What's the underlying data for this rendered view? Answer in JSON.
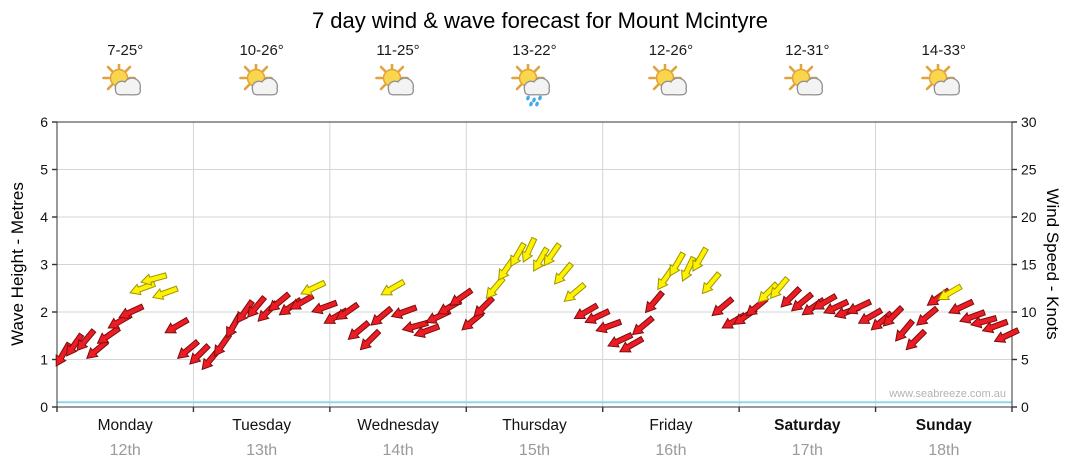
{
  "watermark": "www.seabreeze.com.au",
  "days": [
    {
      "name": "Monday",
      "date": "12th",
      "temp": "7-25°",
      "icon": "sun-cloud",
      "bold": false
    },
    {
      "name": "Tuesday",
      "date": "13th",
      "temp": "10-26°",
      "icon": "sun-cloud",
      "bold": false
    },
    {
      "name": "Wednesday",
      "date": "14th",
      "temp": "11-25°",
      "icon": "sun-cloud",
      "bold": false
    },
    {
      "name": "Thursday",
      "date": "15th",
      "temp": "13-22°",
      "icon": "sun-cloud-rain",
      "bold": false
    },
    {
      "name": "Friday",
      "date": "16th",
      "temp": "12-26°",
      "icon": "sun-cloud",
      "bold": false
    },
    {
      "name": "Saturday",
      "date": "17th",
      "temp": "12-31°",
      "icon": "sun-cloud",
      "bold": true
    },
    {
      "name": "Sunday",
      "date": "18th",
      "temp": "14-33°",
      "icon": "sun-cloud",
      "bold": true
    }
  ],
  "chart_data": {
    "type": "wind-arrows",
    "title": "7 day wind & wave forecast for Mount Mcintyre",
    "left_axis": {
      "label": "Wave Height - Metres",
      "min": 0,
      "max": 6,
      "step": 1
    },
    "right_axis": {
      "label": "Wind Speed - Knots",
      "min": 0,
      "max": 30,
      "step": 5
    },
    "grid": true,
    "colors": {
      "low_wind": "#ed1c24",
      "low_wind_edge": "#7a0e0e",
      "high_wind": "#fff200",
      "high_wind_edge": "#9c9400",
      "wave": "#8ed8e8",
      "high_threshold_knots": 12
    },
    "wave_height_series": {
      "unit": "m",
      "value": 0.1
    },
    "wind_series": [
      {
        "day": "Monday",
        "knots": [
          5.5,
          6.5,
          7.0,
          6.0,
          7.5,
          9.0,
          10.0,
          12.5,
          13.5,
          12.0,
          8.5,
          6.0
        ],
        "dirs": [
          210,
          215,
          220,
          230,
          235,
          240,
          245,
          250,
          255,
          250,
          240,
          230
        ]
      },
      {
        "day": "Tuesday",
        "knots": [
          5.5,
          5.0,
          6.5,
          8.5,
          10.0,
          10.5,
          10.0,
          11.0,
          10.5,
          11.0,
          12.5,
          10.5
        ],
        "dirs": [
          225,
          220,
          215,
          210,
          215,
          220,
          225,
          230,
          235,
          240,
          245,
          250
        ]
      },
      {
        "day": "Wednesday",
        "knots": [
          9.5,
          10.0,
          8.0,
          7.0,
          9.5,
          12.5,
          10.0,
          8.5,
          8.0,
          9.5,
          10.5,
          11.5
        ],
        "dirs": [
          240,
          235,
          230,
          225,
          230,
          240,
          250,
          255,
          250,
          245,
          240,
          235
        ]
      },
      {
        "day": "Thursday",
        "knots": [
          9.0,
          10.5,
          12.5,
          14.5,
          16.0,
          16.5,
          15.5,
          16.0,
          14.0,
          12.0,
          10.0,
          9.5
        ],
        "dirs": [
          230,
          225,
          220,
          215,
          210,
          205,
          210,
          215,
          220,
          230,
          240,
          245
        ]
      },
      {
        "day": "Friday",
        "knots": [
          8.5,
          7.0,
          6.5,
          8.5,
          11.0,
          13.5,
          15.0,
          14.5,
          15.5,
          13.0,
          10.5,
          9.0
        ],
        "dirs": [
          250,
          245,
          240,
          230,
          220,
          215,
          210,
          205,
          210,
          220,
          230,
          240
        ]
      },
      {
        "day": "Saturday",
        "knots": [
          9.5,
          10.5,
          12.0,
          12.5,
          11.5,
          11.0,
          10.5,
          11.0,
          10.5,
          10.0,
          10.5,
          9.5
        ],
        "dirs": [
          235,
          230,
          225,
          220,
          225,
          230,
          235,
          240,
          245,
          250,
          245,
          240
        ]
      },
      {
        "day": "Sunday",
        "knots": [
          9.0,
          9.5,
          8.0,
          7.0,
          9.5,
          11.5,
          12.0,
          10.5,
          9.5,
          9.0,
          8.5,
          7.5
        ],
        "dirs": [
          230,
          225,
          220,
          225,
          230,
          235,
          240,
          245,
          250,
          255,
          250,
          245
        ]
      }
    ]
  }
}
